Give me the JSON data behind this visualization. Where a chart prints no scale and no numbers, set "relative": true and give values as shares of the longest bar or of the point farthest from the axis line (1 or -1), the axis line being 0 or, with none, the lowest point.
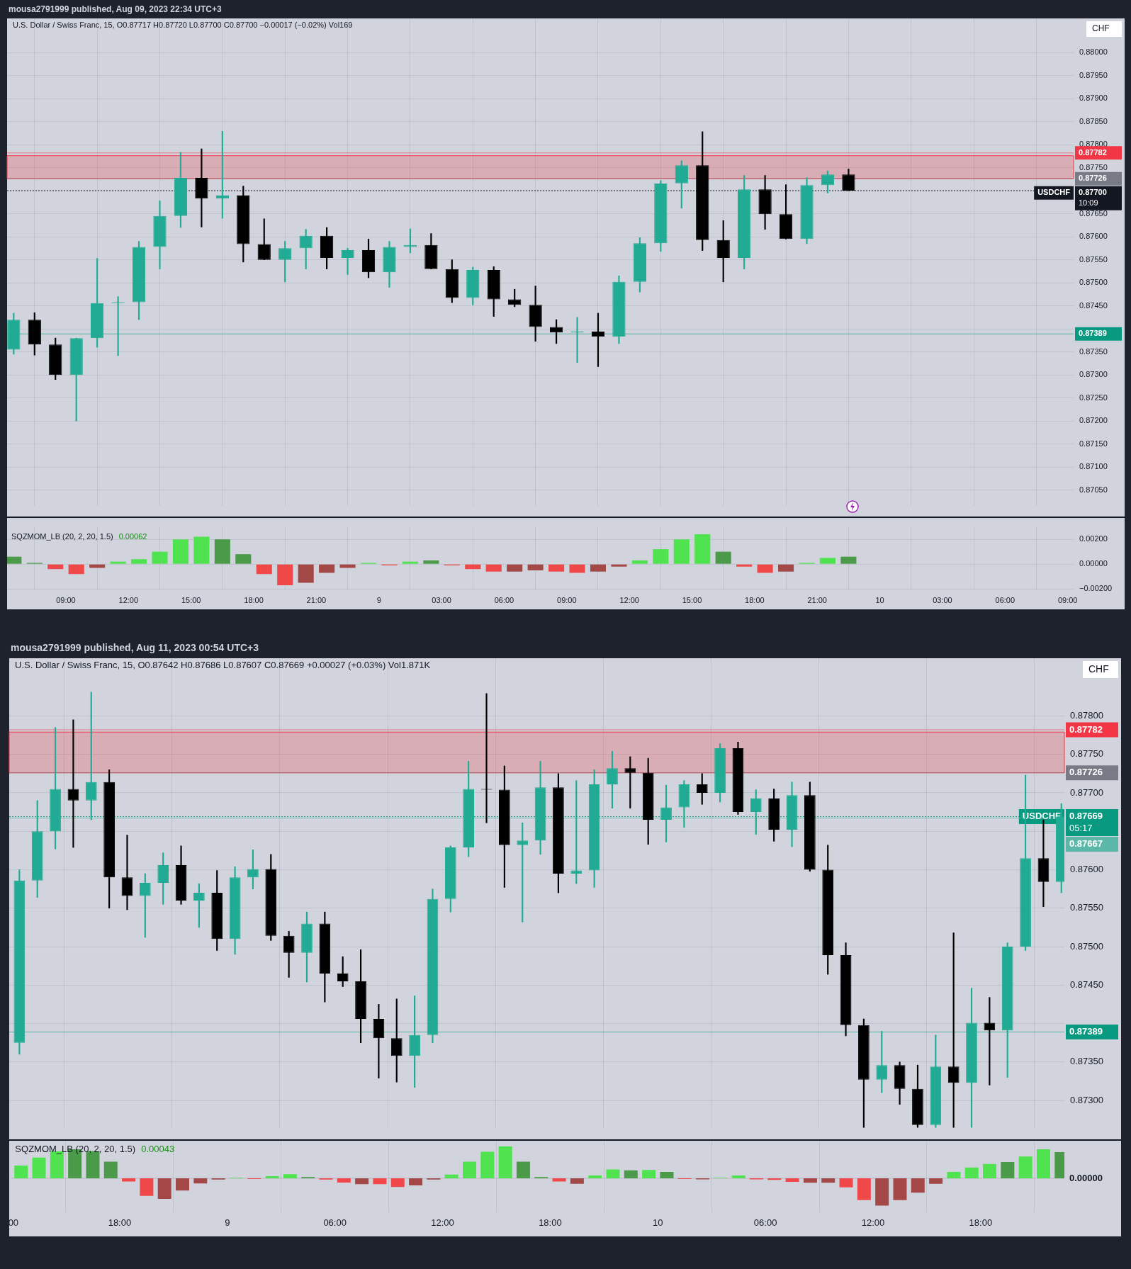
{
  "chart_data": [
    {
      "type": "candlestick",
      "title": "mousa2791999 published, Aug 09, 2023 22:34 UTC+3",
      "subtitle": "U.S. Dollar / Swiss Franc, 15, O0.87717 H0.87720 L0.87700 C0.87700 −0.00017 (−0.02%) Vol169",
      "x": [
        "2023-08-08T06:30",
        "2023-08-08T07:30",
        "2023-08-08T08:30",
        "2023-08-08T09:30",
        "2023-08-08T10:30",
        "2023-08-08T11:30",
        "2023-08-08T12:30",
        "2023-08-08T13:30",
        "2023-08-08T14:30",
        "2023-08-08T15:30",
        "2023-08-08T16:30",
        "2023-08-08T17:30",
        "2023-08-08T18:30",
        "2023-08-08T19:30",
        "2023-08-08T20:30",
        "2023-08-08T21:30",
        "2023-08-08T22:30",
        "2023-08-08T23:30",
        "2023-08-09T00:30",
        "2023-08-09T01:30",
        "2023-08-09T02:30",
        "2023-08-09T03:30",
        "2023-08-09T04:30",
        "2023-08-09T05:30",
        "2023-08-09T06:30",
        "2023-08-09T07:30",
        "2023-08-09T08:30",
        "2023-08-09T09:30",
        "2023-08-09T10:30",
        "2023-08-09T11:30",
        "2023-08-09T12:30",
        "2023-08-09T13:30",
        "2023-08-09T14:30",
        "2023-08-09T15:30",
        "2023-08-09T16:30",
        "2023-08-09T17:30",
        "2023-08-09T18:30",
        "2023-08-09T19:30",
        "2023-08-09T20:30",
        "2023-08-09T21:30",
        "2023-08-09T22:30"
      ],
      "ohlc": [
        [
          0.87355,
          0.87434,
          0.87345,
          0.8742
        ],
        [
          0.8742,
          0.87435,
          0.87343,
          0.87366
        ],
        [
          0.87366,
          0.8738,
          0.8729,
          0.873
        ],
        [
          0.873,
          0.8738,
          0.872,
          0.8738
        ],
        [
          0.8738,
          0.87553,
          0.8736,
          0.87456
        ],
        [
          0.87456,
          0.8747,
          0.87342,
          0.87458
        ],
        [
          0.87458,
          0.8759,
          0.8742,
          0.87578
        ],
        [
          0.87578,
          0.87678,
          0.8753,
          0.87645
        ],
        [
          0.87645,
          0.87783,
          0.8762,
          0.87728
        ],
        [
          0.87728,
          0.87791,
          0.87621,
          0.87683
        ],
        [
          0.87683,
          0.87829,
          0.8764,
          0.8769
        ],
        [
          0.8769,
          0.8771,
          0.87545,
          0.87584
        ],
        [
          0.87584,
          0.87639,
          0.8755,
          0.8755
        ],
        [
          0.8755,
          0.8759,
          0.87502,
          0.87575
        ],
        [
          0.87575,
          0.87616,
          0.8753,
          0.87602
        ],
        [
          0.87602,
          0.8762,
          0.8753,
          0.87554
        ],
        [
          0.87554,
          0.87575,
          0.87518,
          0.87571
        ],
        [
          0.87571,
          0.87595,
          0.87511,
          0.87523
        ],
        [
          0.87523,
          0.8759,
          0.8749,
          0.87578
        ],
        [
          0.87578,
          0.87617,
          0.87565,
          0.87582
        ],
        [
          0.87582,
          0.87607,
          0.8753,
          0.8753
        ],
        [
          0.8753,
          0.8755,
          0.87457,
          0.87467
        ],
        [
          0.87467,
          0.87534,
          0.87452,
          0.87528
        ],
        [
          0.87528,
          0.87535,
          0.87427,
          0.87464
        ],
        [
          0.87464,
          0.87486,
          0.87448,
          0.87452
        ],
        [
          0.87452,
          0.87493,
          0.87373,
          0.87404
        ],
        [
          0.87404,
          0.8742,
          0.87368,
          0.87392
        ],
        [
          0.87392,
          0.87425,
          0.87327,
          0.87394
        ],
        [
          0.87394,
          0.87434,
          0.87318,
          0.87383
        ],
        [
          0.87383,
          0.87515,
          0.87368,
          0.87502
        ],
        [
          0.87502,
          0.87598,
          0.8748,
          0.87586
        ],
        [
          0.87586,
          0.87722,
          0.87568,
          0.87716
        ],
        [
          0.87716,
          0.87765,
          0.87662,
          0.87755
        ],
        [
          0.87755,
          0.87828,
          0.8757,
          0.87593
        ],
        [
          0.87593,
          0.87635,
          0.87502,
          0.87554
        ],
        [
          0.87554,
          0.87733,
          0.8753,
          0.87703
        ],
        [
          0.87703,
          0.87733,
          0.87616,
          0.87649
        ],
        [
          0.87649,
          0.87713,
          0.87595,
          0.87595
        ],
        [
          0.87595,
          0.87728,
          0.87585,
          0.87712
        ],
        [
          0.87712,
          0.87743,
          0.87695,
          0.87735
        ],
        [
          0.87735,
          0.87747,
          0.877,
          0.877
        ]
      ],
      "colors": [
        "#22ab94",
        "#000000",
        "#000000",
        "#22ab94",
        "#22ab94",
        "#22ab94",
        "#22ab94",
        "#22ab94",
        "#22ab94",
        "#000000",
        "#22ab94",
        "#000000",
        "#000000",
        "#22ab94",
        "#22ab94",
        "#000000",
        "#22ab94",
        "#000000",
        "#22ab94",
        "#22ab94",
        "#000000",
        "#000000",
        "#22ab94",
        "#000000",
        "#000000",
        "#000000",
        "#000000",
        "#22ab94",
        "#000000",
        "#22ab94",
        "#22ab94",
        "#22ab94",
        "#22ab94",
        "#000000",
        "#000000",
        "#22ab94",
        "#000000",
        "#000000",
        "#22ab94",
        "#22ab94",
        "#000000"
      ],
      "xlim": [
        "2023-08-08T06:11",
        "2023-08-10T09:17"
      ],
      "xticks": [
        {
          "value": "2023-08-08T09:00",
          "label": null
        },
        {
          "value": "2023-08-08T12:00",
          "label": null
        },
        {
          "value": "2023-08-08T15:00",
          "label": null
        },
        {
          "value": "2023-08-08T18:00",
          "label": null
        },
        {
          "value": "2023-08-08T21:00",
          "label": null
        },
        {
          "value": "2023-08-09T00:00",
          "label": null
        },
        {
          "value": "2023-08-09T03:00",
          "label": null
        },
        {
          "value": "2023-08-09T06:00",
          "label": null
        },
        {
          "value": "2023-08-09T09:00",
          "label": null
        },
        {
          "value": "2023-08-09T12:00",
          "label": null
        },
        {
          "value": "2023-08-09T15:00",
          "label": null
        },
        {
          "value": "2023-08-09T18:00",
          "label": null
        },
        {
          "value": "2023-08-09T21:00",
          "label": null
        },
        {
          "value": "2023-08-10T00:00",
          "label": null
        },
        {
          "value": "2023-08-10T03:00",
          "label": null
        },
        {
          "value": "2023-08-10T06:00",
          "label": null
        },
        {
          "value": "2023-08-10T09:00",
          "label": null
        }
      ],
      "ylim": [
        0.87015,
        0.88074
      ],
      "yticks": [
        {
          "value": 0.8705,
          "label": "0.87050"
        },
        {
          "value": 0.871,
          "label": "0.87100"
        },
        {
          "value": 0.8715,
          "label": "0.87150"
        },
        {
          "value": 0.872,
          "label": "0.87200"
        },
        {
          "value": 0.8725,
          "label": "0.87250"
        },
        {
          "value": 0.873,
          "label": "0.87300"
        },
        {
          "value": 0.8735,
          "label": "0.87350"
        },
        {
          "value": 0.874,
          "label": null
        },
        {
          "value": 0.8745,
          "label": "0.87450"
        },
        {
          "value": 0.875,
          "label": "0.87500"
        },
        {
          "value": 0.8755,
          "label": "0.87550"
        },
        {
          "value": 0.876,
          "label": "0.87600"
        },
        {
          "value": 0.8765,
          "label": "0.87650"
        },
        {
          "value": 0.877,
          "label": null
        },
        {
          "value": 0.8775,
          "label": "0.87750"
        },
        {
          "value": 0.878,
          "label": "0.87800"
        },
        {
          "value": 0.8785,
          "label": "0.87850"
        },
        {
          "value": 0.879,
          "label": "0.87900"
        },
        {
          "value": 0.8795,
          "label": "0.87950"
        },
        {
          "value": 0.88,
          "label": "0.88000"
        }
      ],
      "tick_labels": "y",
      "grid": true,
      "bands": [
        {
          "axis": "y",
          "from": 0.87726,
          "to": 0.87776,
          "color": "#f23645"
        }
      ],
      "ref_lines": [
        {
          "axis": "y",
          "value": 0.87782,
          "label": "0.87782",
          "color": "#f23645"
        },
        {
          "axis": "y",
          "value": 0.87726,
          "label": "0.87726",
          "color": "#787b86"
        },
        {
          "axis": "y",
          "value": 0.87389,
          "label": "0.87389",
          "color": "#089981"
        },
        {
          "axis": "y",
          "value": 0.877,
          "label": "0.87700",
          "color": "#131722",
          "line_style": "dotted"
        }
      ],
      "annotations": [
        "USDCHF",
        "10:09",
        "CHF"
      ]
    },
    {
      "type": "bar",
      "title": "SQZMOM_LB (20, 2, 20, 1.5)",
      "subtitle": "0.00062",
      "x": [
        "2023-08-08T06:30",
        "2023-08-08T07:30",
        "2023-08-08T08:30",
        "2023-08-08T09:30",
        "2023-08-08T10:30",
        "2023-08-08T11:30",
        "2023-08-08T12:30",
        "2023-08-08T13:30",
        "2023-08-08T14:30",
        "2023-08-08T15:30",
        "2023-08-08T16:30",
        "2023-08-08T17:30",
        "2023-08-08T18:30",
        "2023-08-08T19:30",
        "2023-08-08T20:30",
        "2023-08-08T21:30",
        "2023-08-08T22:30",
        "2023-08-08T23:30",
        "2023-08-09T00:30",
        "2023-08-09T01:30",
        "2023-08-09T02:30",
        "2023-08-09T03:30",
        "2023-08-09T04:30",
        "2023-08-09T05:30",
        "2023-08-09T06:30",
        "2023-08-09T07:30",
        "2023-08-09T08:30",
        "2023-08-09T09:30",
        "2023-08-09T10:30",
        "2023-08-09T11:30",
        "2023-08-09T12:30",
        "2023-08-09T13:30",
        "2023-08-09T14:30",
        "2023-08-09T15:30",
        "2023-08-09T16:30",
        "2023-08-09T17:30",
        "2023-08-09T18:30",
        "2023-08-09T19:30",
        "2023-08-09T20:30",
        "2023-08-09T21:30",
        "2023-08-09T22:30"
      ],
      "values": [
        0.0006,
        0.0001,
        -0.0004,
        -0.0008,
        -0.0003,
        0.0002,
        0.0004,
        0.001,
        0.002,
        0.0022,
        0.002,
        0.0008,
        -0.0008,
        -0.0017,
        -0.0015,
        -0.0007,
        -0.0003,
        0.0001,
        -0.0001,
        0.0002,
        0.0003,
        -0.0001,
        -0.0004,
        -0.0006,
        -0.0006,
        -0.0005,
        -0.0006,
        -0.0007,
        -0.0006,
        -0.0002,
        0.0003,
        0.0012,
        0.002,
        0.0024,
        0.001,
        -0.0002,
        -0.0007,
        -0.0006,
        0.0001,
        0.0005,
        0.0006
      ],
      "colors": [
        "#4a9a4a",
        "#4a9a4a",
        "#f04848",
        "#f04848",
        "#a34747",
        "#4fe34f",
        "#4fe34f",
        "#4fe34f",
        "#4fe34f",
        "#4fe34f",
        "#4a9a4a",
        "#4a9a4a",
        "#f04848",
        "#f04848",
        "#a34747",
        "#a34747",
        "#a34747",
        "#4fe34f",
        "#f04848",
        "#4fe34f",
        "#4a9a4a",
        "#f04848",
        "#f04848",
        "#f04848",
        "#a34747",
        "#a34747",
        "#f04848",
        "#f04848",
        "#a34747",
        "#a34747",
        "#4fe34f",
        "#4fe34f",
        "#4fe34f",
        "#4fe34f",
        "#4a9a4a",
        "#f04848",
        "#f04848",
        "#a34747",
        "#4fe34f",
        "#4fe34f",
        "#4a9a4a"
      ],
      "xlim": [
        "2023-08-08T06:11",
        "2023-08-10T09:17"
      ],
      "xticks": [
        {
          "value": "2023-08-08T09:00",
          "label": "09:00"
        },
        {
          "value": "2023-08-08T12:00",
          "label": "12:00"
        },
        {
          "value": "2023-08-08T15:00",
          "label": "15:00"
        },
        {
          "value": "2023-08-08T18:00",
          "label": "18:00"
        },
        {
          "value": "2023-08-08T21:00",
          "label": "21:00"
        },
        {
          "value": "2023-08-09T00:00",
          "label": "9"
        },
        {
          "value": "2023-08-09T03:00",
          "label": "03:00"
        },
        {
          "value": "2023-08-09T06:00",
          "label": "06:00"
        },
        {
          "value": "2023-08-09T09:00",
          "label": "09:00"
        },
        {
          "value": "2023-08-09T12:00",
          "label": "12:00"
        },
        {
          "value": "2023-08-09T15:00",
          "label": "15:00"
        },
        {
          "value": "2023-08-09T18:00",
          "label": "18:00"
        },
        {
          "value": "2023-08-09T21:00",
          "label": "21:00"
        },
        {
          "value": "2023-08-10T00:00",
          "label": "10"
        },
        {
          "value": "2023-08-10T03:00",
          "label": "03:00"
        },
        {
          "value": "2023-08-10T06:00",
          "label": "06:00"
        },
        {
          "value": "2023-08-10T09:00",
          "label": "09:00"
        }
      ],
      "ylim": [
        -0.0021,
        0.003
      ],
      "yticks": [
        {
          "value": -0.002,
          "label": "−0.00200"
        },
        {
          "value": 0,
          "label": "0.00000"
        },
        {
          "value": 0.002,
          "label": "0.00200"
        }
      ],
      "grid": true
    },
    {
      "type": "candlestick",
      "title": "mousa2791999 published, Aug 11, 2023 00:54 UTC+3",
      "subtitle": "U.S. Dollar / Swiss Franc, 15, O0.87642 H0.87686 L0.87607 C0.87669 +0.00027 (+0.03%) Vol1.871K",
      "x": [
        "2023-08-08T12:30",
        "2023-08-08T13:30",
        "2023-08-08T14:30",
        "2023-08-08T15:30",
        "2023-08-08T16:30",
        "2023-08-08T17:30",
        "2023-08-08T18:30",
        "2023-08-08T19:30",
        "2023-08-08T20:30",
        "2023-08-08T21:30",
        "2023-08-08T22:30",
        "2023-08-08T23:30",
        "2023-08-09T00:30",
        "2023-08-09T01:30",
        "2023-08-09T02:30",
        "2023-08-09T03:30",
        "2023-08-09T04:30",
        "2023-08-09T05:30",
        "2023-08-09T06:30",
        "2023-08-09T07:30",
        "2023-08-09T08:30",
        "2023-08-09T09:30",
        "2023-08-09T10:30",
        "2023-08-09T11:30",
        "2023-08-09T12:30",
        "2023-08-09T13:30",
        "2023-08-09T14:30",
        "2023-08-09T15:30",
        "2023-08-09T16:30",
        "2023-08-09T17:30",
        "2023-08-09T18:30",
        "2023-08-09T19:30",
        "2023-08-09T20:30",
        "2023-08-09T21:30",
        "2023-08-09T22:30",
        "2023-08-09T23:30",
        "2023-08-10T00:30",
        "2023-08-10T01:30",
        "2023-08-10T02:30",
        "2023-08-10T03:30",
        "2023-08-10T04:30",
        "2023-08-10T05:30",
        "2023-08-10T06:30",
        "2023-08-10T07:30",
        "2023-08-10T08:30",
        "2023-08-10T09:30",
        "2023-08-10T10:30",
        "2023-08-10T11:30",
        "2023-08-10T12:30",
        "2023-08-10T13:30",
        "2023-08-10T14:30",
        "2023-08-10T15:30",
        "2023-08-10T16:30",
        "2023-08-10T17:30",
        "2023-08-10T18:30",
        "2023-08-10T19:30",
        "2023-08-10T20:30",
        "2023-08-10T21:30",
        "2023-08-10T22:30"
      ],
      "ohlc": [
        [
          0.87375,
          0.876,
          0.8736,
          0.87586
        ],
        [
          0.87586,
          0.8769,
          0.87564,
          0.8765
        ],
        [
          0.8765,
          0.87785,
          0.87627,
          0.87705
        ],
        [
          0.87705,
          0.87795,
          0.87629,
          0.8769
        ],
        [
          0.8769,
          0.87831,
          0.87665,
          0.87714
        ],
        [
          0.87714,
          0.8773,
          0.8755,
          0.8759
        ],
        [
          0.8759,
          0.87645,
          0.87548,
          0.87566
        ],
        [
          0.87566,
          0.87595,
          0.87512,
          0.87583
        ],
        [
          0.87583,
          0.87622,
          0.87555,
          0.87606
        ],
        [
          0.87606,
          0.87631,
          0.87555,
          0.8756
        ],
        [
          0.8756,
          0.87582,
          0.87525,
          0.8757
        ],
        [
          0.8757,
          0.87599,
          0.87495,
          0.8751
        ],
        [
          0.8751,
          0.87604,
          0.8749,
          0.8759
        ],
        [
          0.8759,
          0.87626,
          0.87575,
          0.87601
        ],
        [
          0.87601,
          0.8762,
          0.87508,
          0.87514
        ],
        [
          0.87514,
          0.8752,
          0.8746,
          0.87492
        ],
        [
          0.87492,
          0.87545,
          0.87454,
          0.8753
        ],
        [
          0.8753,
          0.87545,
          0.87428,
          0.87465
        ],
        [
          0.87465,
          0.87487,
          0.87448,
          0.87455
        ],
        [
          0.87455,
          0.87496,
          0.87375,
          0.87406
        ],
        [
          0.87406,
          0.87425,
          0.87329,
          0.87381
        ],
        [
          0.87381,
          0.87432,
          0.87324,
          0.87358
        ],
        [
          0.87358,
          0.87436,
          0.87317,
          0.87385
        ],
        [
          0.87385,
          0.87575,
          0.87375,
          0.87562
        ],
        [
          0.87562,
          0.87631,
          0.87545,
          0.87629
        ],
        [
          0.87629,
          0.87741,
          0.87617,
          0.87705
        ],
        [
          0.87705,
          0.87829,
          0.87661,
          0.87704
        ],
        [
          0.87704,
          0.87735,
          0.87577,
          0.87632
        ],
        [
          0.87632,
          0.87661,
          0.87532,
          0.87638
        ],
        [
          0.87638,
          0.87741,
          0.8762,
          0.87707
        ],
        [
          0.87707,
          0.87725,
          0.8757,
          0.87595
        ],
        [
          0.87595,
          0.87716,
          0.87582,
          0.87599
        ],
        [
          0.87599,
          0.8773,
          0.87577,
          0.87711
        ],
        [
          0.87711,
          0.87754,
          0.8768,
          0.87732
        ],
        [
          0.87732,
          0.87747,
          0.8768,
          0.87726
        ],
        [
          0.87726,
          0.87745,
          0.87633,
          0.87665
        ],
        [
          0.87665,
          0.8771,
          0.87636,
          0.87681
        ],
        [
          0.87681,
          0.87716,
          0.87655,
          0.87711
        ],
        [
          0.87711,
          0.87725,
          0.87685,
          0.877
        ],
        [
          0.877,
          0.87764,
          0.87688,
          0.87758
        ],
        [
          0.87758,
          0.87766,
          0.87672,
          0.87675
        ],
        [
          0.87675,
          0.87704,
          0.87646,
          0.87693
        ],
        [
          0.87693,
          0.87705,
          0.87637,
          0.87652
        ],
        [
          0.87652,
          0.87714,
          0.8763,
          0.87697
        ],
        [
          0.87697,
          0.87714,
          0.87598,
          0.876
        ],
        [
          0.876,
          0.87632,
          0.87464,
          0.87489
        ],
        [
          0.87489,
          0.87505,
          0.87384,
          0.87398
        ],
        [
          0.87398,
          0.87406,
          0.87265,
          0.87327
        ],
        [
          0.87327,
          0.8739,
          0.8731,
          0.87346
        ],
        [
          0.87346,
          0.8735,
          0.87295,
          0.87315
        ],
        [
          0.87315,
          0.87346,
          0.87265,
          0.87268
        ],
        [
          0.87268,
          0.87385,
          0.87265,
          0.87344
        ],
        [
          0.87344,
          0.87518,
          0.87265,
          0.87323
        ],
        [
          0.87323,
          0.87446,
          0.87265,
          0.87401
        ],
        [
          0.87401,
          0.87434,
          0.8732,
          0.87391
        ],
        [
          0.87391,
          0.87505,
          0.8733,
          0.875
        ],
        [
          0.875,
          0.87723,
          0.87495,
          0.87615
        ],
        [
          0.87615,
          0.87665,
          0.87552,
          0.87584
        ],
        [
          0.87584,
          0.87686,
          0.8757,
          0.87669
        ]
      ],
      "colors": [
        "#22ab94",
        "#22ab94",
        "#22ab94",
        "#000000",
        "#22ab94",
        "#000000",
        "#000000",
        "#22ab94",
        "#22ab94",
        "#000000",
        "#22ab94",
        "#000000",
        "#22ab94",
        "#22ab94",
        "#000000",
        "#000000",
        "#22ab94",
        "#000000",
        "#000000",
        "#000000",
        "#000000",
        "#000000",
        "#22ab94",
        "#22ab94",
        "#22ab94",
        "#22ab94",
        "#000000",
        "#000000",
        "#22ab94",
        "#22ab94",
        "#000000",
        "#22ab94",
        "#22ab94",
        "#22ab94",
        "#000000",
        "#000000",
        "#22ab94",
        "#22ab94",
        "#000000",
        "#22ab94",
        "#000000",
        "#22ab94",
        "#000000",
        "#22ab94",
        "#000000",
        "#000000",
        "#000000",
        "#000000",
        "#22ab94",
        "#000000",
        "#000000",
        "#22ab94",
        "#000000",
        "#22ab94",
        "#000000",
        "#22ab94",
        "#22ab94",
        "#000000",
        "#22ab94"
      ],
      "xlim": [
        "2023-08-08T11:56",
        "2023-08-10T22:40"
      ],
      "xticks": [
        {
          "value": "2023-08-08T12:00",
          "label": null
        },
        {
          "value": "2023-08-08T18:00",
          "label": null
        },
        {
          "value": "2023-08-09T00:00",
          "label": null
        },
        {
          "value": "2023-08-09T06:00",
          "label": null
        },
        {
          "value": "2023-08-09T12:00",
          "label": null
        },
        {
          "value": "2023-08-09T18:00",
          "label": null
        },
        {
          "value": "2023-08-10T00:00",
          "label": null
        },
        {
          "value": "2023-08-10T06:00",
          "label": null
        },
        {
          "value": "2023-08-10T12:00",
          "label": null
        },
        {
          "value": "2023-08-10T18:00",
          "label": null
        }
      ],
      "ylim": [
        0.87264,
        0.87875
      ],
      "yticks": [
        {
          "value": 0.873,
          "label": "0.87300"
        },
        {
          "value": 0.8735,
          "label": "0.87350"
        },
        {
          "value": 0.874,
          "label": null
        },
        {
          "value": 0.8745,
          "label": "0.87450"
        },
        {
          "value": 0.875,
          "label": "0.87500"
        },
        {
          "value": 0.8755,
          "label": "0.87550"
        },
        {
          "value": 0.876,
          "label": "0.87600"
        },
        {
          "value": 0.8765,
          "label": null
        },
        {
          "value": 0.877,
          "label": "0.87700"
        },
        {
          "value": 0.8775,
          "label": "0.87750"
        },
        {
          "value": 0.878,
          "label": "0.87800"
        }
      ],
      "tick_labels": "y",
      "grid": true,
      "bands": [
        {
          "axis": "y",
          "from": 0.87726,
          "to": 0.87779,
          "color": "#f23645"
        }
      ],
      "ref_lines": [
        {
          "axis": "y",
          "value": 0.87782,
          "label": "0.87782",
          "color": "#f23645"
        },
        {
          "axis": "y",
          "value": 0.87726,
          "label": "0.87726",
          "color": "#787b86"
        },
        {
          "axis": "y",
          "value": 0.87389,
          "label": "0.87389",
          "color": "#089981"
        },
        {
          "axis": "y",
          "value": 0.87669,
          "label": "0.87669",
          "color": "#089981",
          "line_style": "dotted"
        },
        {
          "axis": "y",
          "value": 0.87667,
          "label": "0.87667",
          "color": "#5bb8a8"
        }
      ],
      "annotations": [
        "USDCHF",
        "05:17",
        "CHF"
      ]
    },
    {
      "type": "bar",
      "title": "SQZMOM_LB (20, 2, 20, 1.5)",
      "subtitle": "0.00043",
      "relative": true,
      "x": [
        "2023-08-08T12:30",
        "2023-08-08T13:30",
        "2023-08-08T14:30",
        "2023-08-08T15:30",
        "2023-08-08T16:30",
        "2023-08-08T17:30",
        "2023-08-08T18:30",
        "2023-08-08T19:30",
        "2023-08-08T20:30",
        "2023-08-08T21:30",
        "2023-08-08T22:30",
        "2023-08-08T23:30",
        "2023-08-09T00:30",
        "2023-08-09T01:30",
        "2023-08-09T02:30",
        "2023-08-09T03:30",
        "2023-08-09T04:30",
        "2023-08-09T05:30",
        "2023-08-09T06:30",
        "2023-08-09T07:30",
        "2023-08-09T08:30",
        "2023-08-09T09:30",
        "2023-08-09T10:30",
        "2023-08-09T11:30",
        "2023-08-09T12:30",
        "2023-08-09T13:30",
        "2023-08-09T14:30",
        "2023-08-09T15:30",
        "2023-08-09T16:30",
        "2023-08-09T17:30",
        "2023-08-09T18:30",
        "2023-08-09T19:30",
        "2023-08-09T20:30",
        "2023-08-09T21:30",
        "2023-08-09T22:30",
        "2023-08-09T23:30",
        "2023-08-10T00:30",
        "2023-08-10T01:30",
        "2023-08-10T02:30",
        "2023-08-10T03:30",
        "2023-08-10T04:30",
        "2023-08-10T05:30",
        "2023-08-10T06:30",
        "2023-08-10T07:30",
        "2023-08-10T08:30",
        "2023-08-10T09:30",
        "2023-08-10T10:30",
        "2023-08-10T11:30",
        "2023-08-10T12:30",
        "2023-08-10T13:30",
        "2023-08-10T14:30",
        "2023-08-10T15:30",
        "2023-08-10T16:30",
        "2023-08-10T17:30",
        "2023-08-10T18:30",
        "2023-08-10T19:30",
        "2023-08-10T20:30",
        "2023-08-10T21:30",
        "2023-08-10T22:30"
      ],
      "values": [
        0.4,
        0.65,
        0.85,
        0.91,
        0.85,
        0.52,
        -0.1,
        -0.55,
        -0.64,
        -0.38,
        -0.16,
        -0.04,
        0.02,
        -0.02,
        0.07,
        0.13,
        0.04,
        -0.04,
        -0.13,
        -0.18,
        -0.18,
        -0.27,
        -0.22,
        -0.04,
        0.12,
        0.52,
        0.83,
        1,
        0.52,
        0.04,
        -0.1,
        -0.17,
        0.09,
        0.28,
        0.25,
        0.26,
        0.2,
        -0.02,
        -0.03,
        0.02,
        0.09,
        -0.03,
        -0.05,
        -0.11,
        -0.14,
        -0.14,
        -0.28,
        -0.68,
        -0.85,
        -0.68,
        -0.45,
        -0.17,
        0.2,
        0.34,
        0.45,
        0.51,
        0.68,
        0.91,
        0.82
      ],
      "colors": [
        "#4fe34f",
        "#4fe34f",
        "#4fe34f",
        "#4a9a4a",
        "#4a9a4a",
        "#4a9a4a",
        "#f04848",
        "#f04848",
        "#a34747",
        "#a34747",
        "#a34747",
        "#a34747",
        "#4fe34f",
        "#f04848",
        "#4fe34f",
        "#4fe34f",
        "#4a9a4a",
        "#f04848",
        "#f04848",
        "#a34747",
        "#f04848",
        "#f04848",
        "#a34747",
        "#a34747",
        "#4fe34f",
        "#4fe34f",
        "#4fe34f",
        "#4fe34f",
        "#4a9a4a",
        "#4a9a4a",
        "#f04848",
        "#a34747",
        "#4fe34f",
        "#4fe34f",
        "#4a9a4a",
        "#4fe34f",
        "#4a9a4a",
        "#f04848",
        "#a34747",
        "#4fe34f",
        "#4fe34f",
        "#f04848",
        "#f04848",
        "#f04848",
        "#a34747",
        "#a34747",
        "#f04848",
        "#f04848",
        "#a34747",
        "#a34747",
        "#a34747",
        "#a34747",
        "#4fe34f",
        "#4fe34f",
        "#4fe34f",
        "#4a9a4a",
        "#4fe34f",
        "#4fe34f",
        "#4a9a4a"
      ],
      "xlim": [
        "2023-08-08T11:56",
        "2023-08-10T22:40"
      ],
      "xticks": [
        {
          "value": "2023-08-08T12:00",
          "label": ":00"
        },
        {
          "value": "2023-08-08T18:00",
          "label": "18:00"
        },
        {
          "value": "2023-08-09T00:00",
          "label": "9"
        },
        {
          "value": "2023-08-09T06:00",
          "label": "06:00"
        },
        {
          "value": "2023-08-09T12:00",
          "label": "12:00"
        },
        {
          "value": "2023-08-09T18:00",
          "label": "18:00"
        },
        {
          "value": "2023-08-10T00:00",
          "label": "10"
        },
        {
          "value": "2023-08-10T06:00",
          "label": "06:00"
        },
        {
          "value": "2023-08-10T12:00",
          "label": "12:00"
        },
        {
          "value": "2023-08-10T18:00",
          "label": "18:00"
        }
      ],
      "ref_lines": [
        {
          "axis": "y",
          "value": 0,
          "label": "0.00000"
        }
      ],
      "grid": "x"
    }
  ]
}
